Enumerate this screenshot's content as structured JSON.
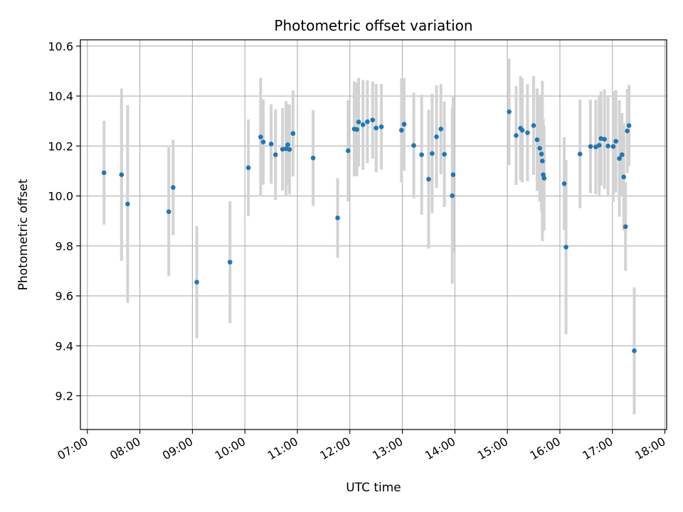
{
  "chart_data": {
    "type": "scatter",
    "title": "Photometric offset variation",
    "xlabel": "UTC time",
    "ylabel": "Photometric offset",
    "xlim": [
      "06:52",
      "18:02"
    ],
    "ylim": [
      9.065,
      10.625
    ],
    "grid": true,
    "x_ticks": [
      "07:00",
      "08:00",
      "09:00",
      "10:00",
      "11:00",
      "12:00",
      "13:00",
      "14:00",
      "15:00",
      "16:00",
      "17:00",
      "18:00"
    ],
    "y_ticks": [
      "9.2",
      "9.4",
      "9.6",
      "9.8",
      "10.0",
      "10.2",
      "10.4",
      "10.6"
    ],
    "colors": {
      "point": "#1f77b4",
      "errorbar": "#d3d3d3",
      "grid": "#b0b0b0"
    },
    "series": [
      {
        "x": [
          "07:19",
          "07:39",
          "07:46",
          "08:33",
          "08:38",
          "09:05",
          "09:43",
          "10:04",
          "10:18",
          "10:21",
          "10:30",
          "10:35",
          "10:43",
          "10:47",
          "10:49",
          "10:51",
          "10:55",
          "11:18",
          "11:46",
          "11:58",
          "12:05",
          "12:08",
          "12:10",
          "12:15",
          "12:20",
          "12:26",
          "12:30",
          "12:36",
          "12:59",
          "13:02",
          "13:13",
          "13:22",
          "13:30",
          "13:34",
          "13:39",
          "13:44",
          "13:48",
          "13:57",
          "13:58",
          "15:02",
          "15:10",
          "15:15",
          "15:17",
          "15:23",
          "15:30",
          "15:34",
          "15:37",
          "15:39",
          "15:40",
          "15:41",
          "15:42",
          "16:05",
          "16:07",
          "16:23",
          "16:35",
          "16:41",
          "16:45",
          "16:47",
          "16:51",
          "16:55",
          "17:01",
          "17:04",
          "17:08",
          "17:11",
          "17:13",
          "17:15",
          "17:17",
          "17:19",
          "17:25"
        ],
        "y": [
          10.093,
          10.085,
          9.968,
          9.937,
          10.034,
          9.655,
          9.735,
          10.113,
          10.236,
          10.216,
          10.208,
          10.165,
          10.187,
          10.189,
          10.205,
          10.186,
          10.25,
          10.152,
          9.912,
          10.181,
          10.268,
          10.266,
          10.296,
          10.285,
          10.297,
          10.304,
          10.272,
          10.277,
          10.263,
          10.287,
          10.202,
          10.165,
          10.067,
          10.17,
          10.237,
          10.268,
          10.167,
          10.001,
          10.085,
          10.337,
          10.242,
          10.271,
          10.263,
          10.253,
          10.282,
          10.225,
          10.191,
          10.168,
          10.14,
          10.085,
          10.071,
          10.049,
          9.795,
          10.168,
          10.198,
          10.196,
          10.203,
          10.23,
          10.227,
          10.2,
          10.198,
          10.219,
          10.15,
          10.165,
          10.076,
          9.877,
          10.26,
          10.282,
          9.38
        ],
        "err": [
          0.208,
          0.345,
          0.396,
          0.258,
          0.191,
          0.225,
          0.244,
          0.194,
          0.237,
          0.171,
          0.159,
          0.181,
          0.165,
          0.191,
          0.163,
          0.18,
          0.172,
          0.192,
          0.159,
          0.203,
          0.19,
          0.187,
          0.177,
          0.18,
          0.166,
          0.155,
          0.177,
          0.171,
          0.208,
          0.185,
          0.211,
          0.24,
          0.278,
          0.239,
          0.205,
          0.181,
          0.211,
          0.352,
          0.311,
          0.213,
          0.198,
          0.209,
          0.208,
          0.194,
          0.198,
          0.205,
          0.214,
          0.229,
          0.321,
          0.225,
          0.209,
          0.186,
          0.349,
          0.217,
          0.187,
          0.189,
          0.2,
          0.189,
          0.199,
          0.203,
          0.221,
          0.205,
          0.233,
          0.167,
          0.214,
          0.177,
          0.168,
          0.163,
          0.254
        ]
      }
    ]
  }
}
